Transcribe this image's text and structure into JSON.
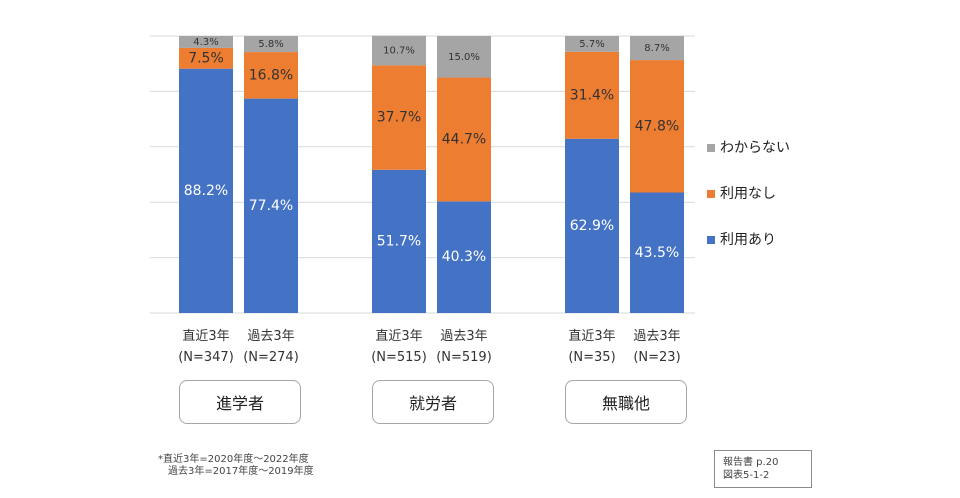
{
  "chart_data": {
    "type": "bar",
    "stacked": true,
    "categories": [
      "直近3年",
      "過去3年",
      "直近3年",
      "過去3年",
      "直近3年",
      "過去3年"
    ],
    "category_sub": [
      "(N=347)",
      "(N=274)",
      "(N=515)",
      "(N=519)",
      "(N=35)",
      "(N=23)"
    ],
    "groups": [
      "進学者",
      "就労者",
      "無職他"
    ],
    "series": [
      {
        "name": "利用あり",
        "color": "#4472c4",
        "values": [
          88.2,
          77.4,
          51.7,
          40.3,
          62.9,
          43.5
        ]
      },
      {
        "name": "利用なし",
        "color": "#ed7d31",
        "values": [
          7.5,
          16.8,
          37.7,
          44.7,
          31.4,
          47.8
        ]
      },
      {
        "name": "わからない",
        "color": "#a5a5a5",
        "values": [
          4.3,
          5.8,
          10.7,
          15.0,
          5.7,
          8.7
        ]
      }
    ],
    "value_labels": [
      [
        "88.2%",
        "77.4%",
        "51.7%",
        "40.3%",
        "62.9%",
        "43.5%"
      ],
      [
        "7.5%",
        "16.8%",
        "37.7%",
        "44.7%",
        "31.4%",
        "47.8%"
      ],
      [
        "4.3%",
        "5.8%",
        "10.7%",
        "15.0%",
        "5.7%",
        "8.7%"
      ]
    ],
    "ylim": [
      0,
      100
    ],
    "grid": true,
    "legend_position": "right",
    "legend_order": [
      "わからない",
      "利用なし",
      "利用あり"
    ]
  },
  "footnote": {
    "line1": "*直近3年=2020年度～2022年度",
    "line2": "過去3年=2017年度～2019年度"
  },
  "source": {
    "line1": "報告書 p.20",
    "line2": "図表5-1-2"
  }
}
